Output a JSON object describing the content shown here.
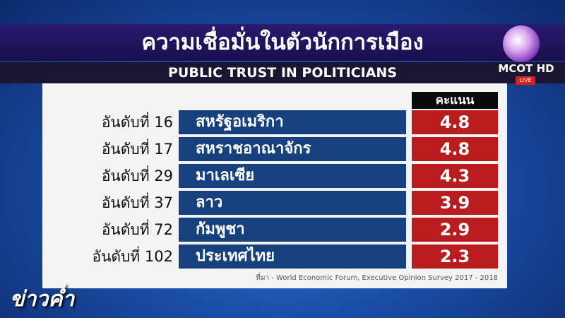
{
  "header": {
    "title": "ความเชื่อมั่นในตัวนักการเมือง",
    "subtitle": "PUBLIC TRUST IN POLITICIANS"
  },
  "logo": {
    "name": "MCOT HD",
    "live": "LIVE"
  },
  "table": {
    "score_header": "คะแนน",
    "rows": [
      [
        "อันดับที่ 16",
        "สหรัฐอเมริกา",
        4.8
      ],
      [
        "อันดับที่ 17",
        "สหราชอาณาจักร",
        4.8
      ],
      [
        "อันดับที่ 29",
        "มาเลเซีย",
        4.3
      ],
      [
        "อันดับที่ 37",
        "ลาว",
        3.9
      ],
      [
        "อันดับที่ 72",
        "กัมพูชา",
        2.9
      ],
      [
        "อันดับที่ 102",
        "ประเทศไทย",
        2.3
      ]
    ]
  },
  "source": "ที่มา - World Economic Forum, Executive Opinion Survey 2017 - 2018",
  "program": "ข่าวค่ำ"
}
